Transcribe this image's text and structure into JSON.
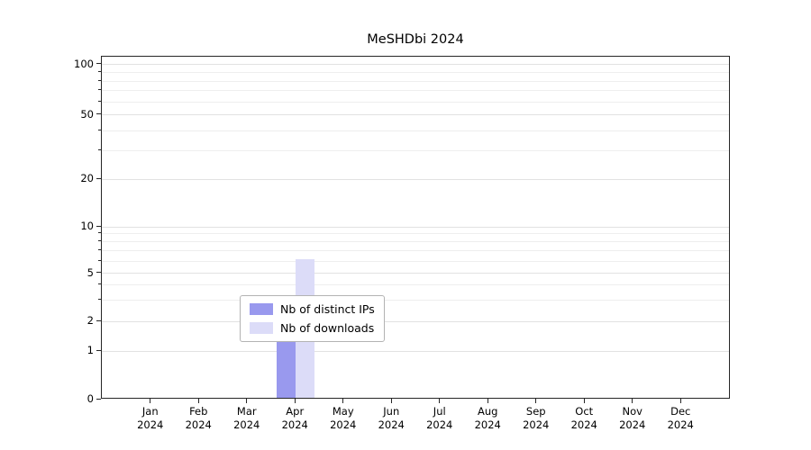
{
  "title": "MeSHDbi 2024",
  "chart_data": {
    "type": "bar",
    "title": "MeSHDbi 2024",
    "categories": [
      [
        "Jan",
        "2024"
      ],
      [
        "Feb",
        "2024"
      ],
      [
        "Mar",
        "2024"
      ],
      [
        "Apr",
        "2024"
      ],
      [
        "May",
        "2024"
      ],
      [
        "Jun",
        "2024"
      ],
      [
        "Jul",
        "2024"
      ],
      [
        "Aug",
        "2024"
      ],
      [
        "Sep",
        "2024"
      ],
      [
        "Oct",
        "2024"
      ],
      [
        "Nov",
        "2024"
      ],
      [
        "Dec",
        "2024"
      ]
    ],
    "series": [
      {
        "name": "Nb of distinct IPs",
        "color": "#9999ee",
        "values": [
          0,
          0,
          0,
          2,
          0,
          0,
          0,
          0,
          0,
          0,
          0,
          0
        ]
      },
      {
        "name": "Nb of downloads",
        "color": "#dcdcf8",
        "values": [
          0,
          0,
          0,
          6,
          0,
          0,
          0,
          0,
          0,
          0,
          0,
          0
        ]
      }
    ],
    "yticks": [
      {
        "value": 0,
        "label": "0"
      },
      {
        "value": 1,
        "label": "1"
      },
      {
        "value": 2,
        "label": "2"
      },
      {
        "value": 5,
        "label": "5"
      },
      {
        "value": 10,
        "label": "10"
      },
      {
        "value": 20,
        "label": "20"
      },
      {
        "value": 50,
        "label": "50"
      },
      {
        "value": 100,
        "label": "100"
      }
    ],
    "minor_grid_values": [
      3,
      4,
      6,
      7,
      8,
      9,
      30,
      40,
      60,
      70,
      80,
      90
    ],
    "scale": "log-like (linear below 1)",
    "ylim": [
      0,
      110
    ],
    "grid": true,
    "legend_position": "lower center inside plot",
    "xlabel": "",
    "ylabel": ""
  }
}
